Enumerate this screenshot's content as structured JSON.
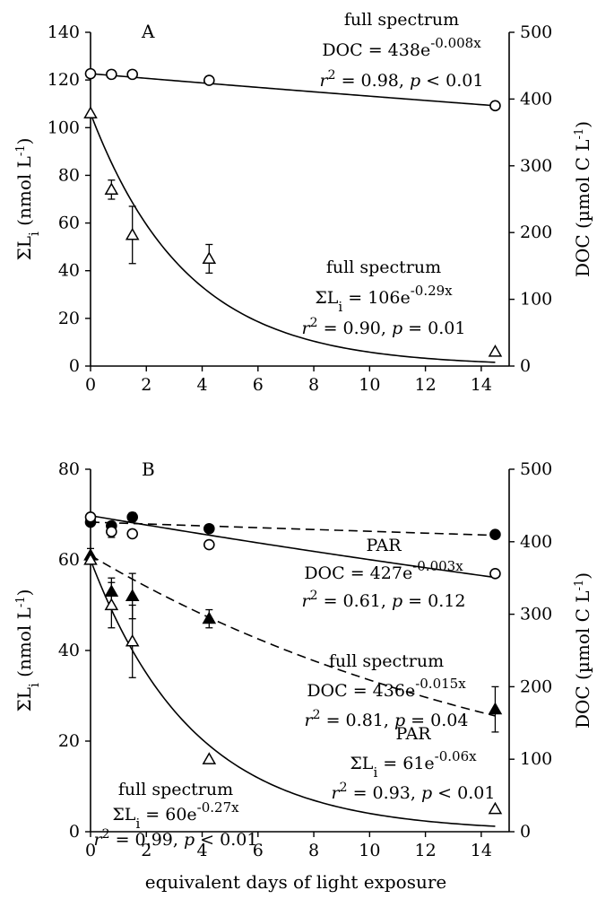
{
  "chart_data": [
    {
      "type": "scatter",
      "panel": "A",
      "xlabel": "",
      "ylabel": "ΣLi (nmol L-1)",
      "y2label": "DOC (µmol C L-1)",
      "xlim": [
        0,
        15
      ],
      "xticks": [
        0,
        2,
        4,
        6,
        8,
        10,
        12,
        14
      ],
      "ylim": [
        0,
        140
      ],
      "yticks": [
        0,
        20,
        40,
        60,
        80,
        100,
        120,
        140
      ],
      "y2lim": [
        0,
        500
      ],
      "y2ticks": [
        0,
        100,
        200,
        300,
        400,
        500
      ],
      "grid": false,
      "series": [
        {
          "marker": "open-circle",
          "axis": "right",
          "treatment": "full spectrum",
          "points": [
            [
              0,
              438
            ],
            [
              0.75,
              437
            ],
            [
              1.5,
              437
            ],
            [
              4.25,
              428
            ],
            [
              14.5,
              390
            ]
          ],
          "errors": [
            0,
            0,
            0,
            0,
            0
          ],
          "fit": {
            "a": 438,
            "k": -0.008,
            "style": "solid"
          }
        },
        {
          "marker": "open-triangle",
          "axis": "left",
          "treatment": "full spectrum",
          "points": [
            [
              0,
              106
            ],
            [
              0.75,
              74
            ],
            [
              1.5,
              55
            ],
            [
              4.25,
              45
            ],
            [
              14.5,
              6
            ]
          ],
          "errors": [
            0,
            4,
            12,
            6,
            0
          ],
          "fit": {
            "a": 106,
            "k": -0.29,
            "style": "solid"
          }
        }
      ],
      "annotations": [
        {
          "line1": "full spectrum",
          "eq_lhs": "DOC = 438e",
          "eq_exp": "-0.008x",
          "r2_sup": "2",
          "r2_rest": " = 0.98, ",
          "p_rest": " < 0.01"
        },
        {
          "line1": "full spectrum",
          "eq_lhs": "ΣL",
          "eq_sub": "i",
          "eq_mid": " = 106e",
          "eq_exp": "-0.29x",
          "r2_sup": "2",
          "r2_rest": " = 0.90, ",
          "p_rest": " = 0.01"
        }
      ]
    },
    {
      "type": "scatter",
      "panel": "B",
      "xlabel": "equivalent days of light exposure",
      "ylabel": "ΣLi (nmol L-1)",
      "y2label": "DOC (µmol C L-1)",
      "xlim": [
        0,
        15
      ],
      "xticks": [
        0,
        2,
        4,
        6,
        8,
        10,
        12,
        14
      ],
      "ylim": [
        0,
        80
      ],
      "yticks": [
        0,
        20,
        40,
        60,
        80
      ],
      "y2lim": [
        0,
        500
      ],
      "y2ticks": [
        0,
        100,
        200,
        300,
        400,
        500
      ],
      "grid": false,
      "series": [
        {
          "marker": "filled-circle",
          "axis": "right",
          "treatment": "PAR",
          "points": [
            [
              0,
              427
            ],
            [
              0.75,
              422
            ],
            [
              1.5,
              434
            ],
            [
              4.25,
              418
            ],
            [
              14.5,
              410
            ]
          ],
          "errors": [
            0,
            0,
            6,
            0,
            0
          ],
          "fit": {
            "a": 427,
            "k": -0.003,
            "style": "dashed"
          }
        },
        {
          "marker": "open-circle",
          "axis": "right",
          "treatment": "full spectrum",
          "points": [
            [
              0,
              434
            ],
            [
              0.75,
              414
            ],
            [
              1.5,
              411
            ],
            [
              4.25,
              396
            ],
            [
              14.5,
              356
            ]
          ],
          "errors": [
            0,
            8,
            0,
            0,
            0
          ],
          "fit": {
            "a": 436,
            "k": -0.015,
            "style": "solid"
          }
        },
        {
          "marker": "filled-triangle",
          "axis": "left",
          "treatment": "PAR",
          "points": [
            [
              0,
              61
            ],
            [
              0.75,
              53
            ],
            [
              1.5,
              52
            ],
            [
              4.25,
              47
            ],
            [
              14.5,
              27
            ]
          ],
          "errors": [
            1.5,
            3,
            5,
            2,
            5
          ],
          "fit": {
            "a": 61,
            "k": -0.06,
            "style": "dashed"
          }
        },
        {
          "marker": "open-triangle",
          "axis": "left",
          "treatment": "full spectrum",
          "points": [
            [
              0,
              60
            ],
            [
              0.75,
              50
            ],
            [
              1.5,
              42
            ],
            [
              4.25,
              16
            ],
            [
              14.5,
              5
            ]
          ],
          "errors": [
            0,
            5,
            8,
            0,
            0
          ],
          "fit": {
            "a": 60,
            "k": -0.27,
            "style": "solid"
          }
        }
      ],
      "annotations": [
        {
          "line1": "PAR",
          "eq_lhs": "DOC = 427e",
          "eq_exp": "-0.003x",
          "r2_sup": "2",
          "r2_rest": " = 0.61, ",
          "p_rest": " = 0.12"
        },
        {
          "line1": "full spectrum",
          "eq_lhs": "DOC = 436e",
          "eq_exp": "-0.015x",
          "r2_sup": "2",
          "r2_rest": " = 0.81, ",
          "p_rest": " = 0.04"
        },
        {
          "line1": "PAR",
          "eq_lhs": "ΣL",
          "eq_sub": "i",
          "eq_mid": " = 61e",
          "eq_exp": "-0.06x",
          "r2_sup": "2",
          "r2_rest": " = 0.93, ",
          "p_rest": " < 0.01"
        },
        {
          "line1": "full spectrum",
          "eq_lhs": "ΣL",
          "eq_sub": "i",
          "eq_mid": " = 60e",
          "eq_exp": "-0.27x",
          "r2_sup": "2",
          "r2_rest": " = 0.99, ",
          "p_rest": " < 0.01"
        }
      ]
    }
  ]
}
